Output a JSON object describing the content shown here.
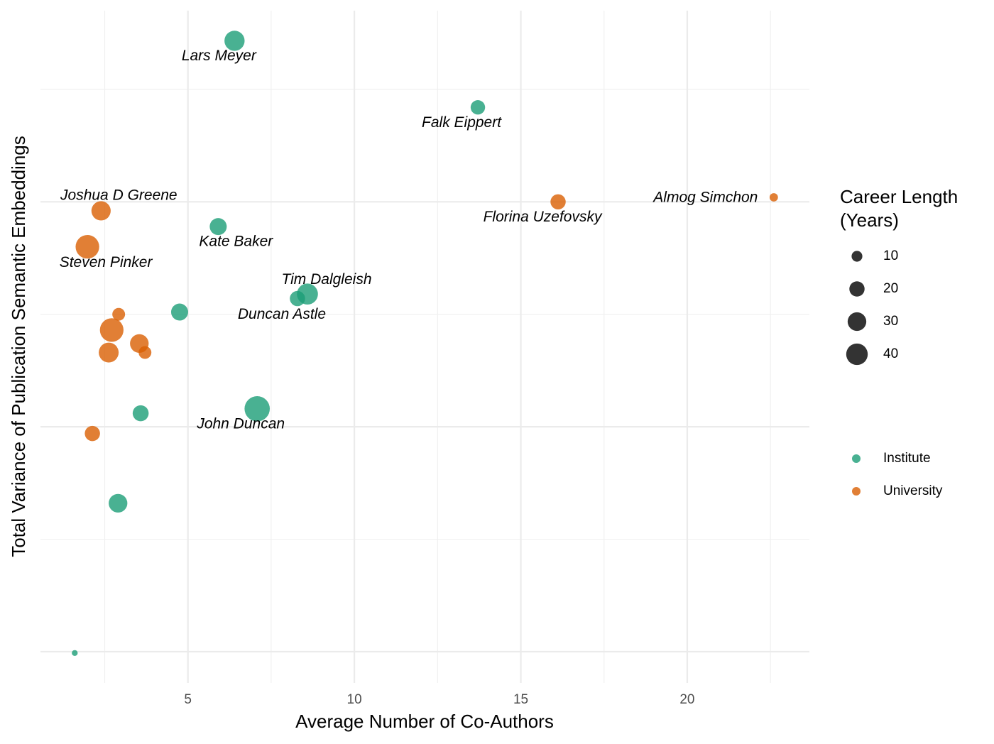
{
  "chart_data": {
    "type": "scatter",
    "x_label": "Average Number of Co-Authors",
    "y_label": "Total Variance of Publication Semantic Embeddings",
    "xlim": [
      0.57,
      23.67
    ],
    "xticks": [
      5,
      10,
      15,
      20
    ],
    "ylim": [
      -0.139,
      2.85
    ],
    "yticks": [
      0,
      1,
      2
    ],
    "y_tick_labels": false,
    "grid": true,
    "series": [
      {
        "name": "Institute",
        "color": "#1b9e77",
        "x": [
          6.4,
          13.71,
          5.91,
          8.59,
          8.29,
          4.75,
          3.58,
          7.08,
          2.9,
          1.6
        ],
        "values": [
          2.716,
          2.42,
          1.89,
          1.59,
          1.57,
          1.51,
          1.06,
          1.08,
          0.66,
          -0.006
        ],
        "sizes": [
          35,
          18,
          25,
          38,
          20,
          25,
          22,
          55,
          30,
          3
        ],
        "labels": [
          "Lars Meyer",
          "Falk Eippert",
          "Kate Baker",
          "Tim Dalgleish",
          "Duncan Astle",
          null,
          null,
          "John Duncan",
          null,
          null
        ]
      },
      {
        "name": "University",
        "color": "#d95f02",
        "x": [
          16.12,
          22.6,
          2.39,
          1.98,
          2.92,
          2.71,
          3.54,
          3.71,
          2.62,
          2.13
        ],
        "values": [
          2.0,
          2.02,
          1.96,
          1.8,
          1.5,
          1.43,
          1.37,
          1.33,
          1.33,
          0.97
        ],
        "sizes": [
          20,
          6,
          32,
          48,
          14,
          48,
          30,
          14,
          34,
          20
        ],
        "labels": [
          "Florina Uzefovsky",
          "Almog Simchon",
          "Joshua D Greene",
          "Steven Pinker",
          null,
          null,
          null,
          null,
          null,
          null
        ]
      }
    ],
    "size_legend": {
      "title": [
        "Career Length",
        "(Years)"
      ],
      "values": [
        10,
        20,
        30,
        40
      ]
    }
  }
}
